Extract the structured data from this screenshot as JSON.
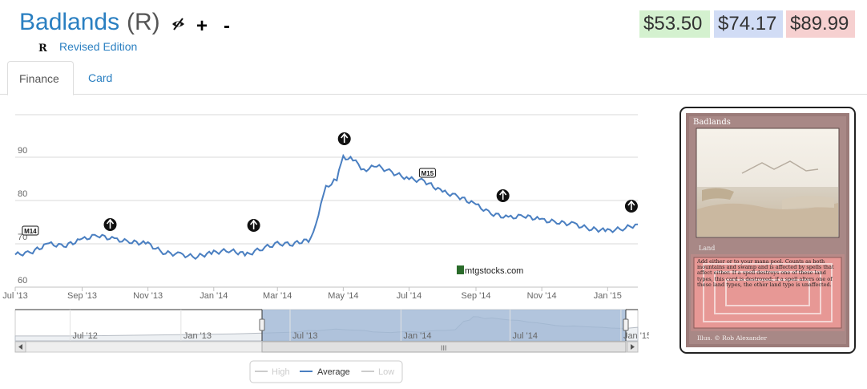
{
  "header": {
    "card_name": "Badlands",
    "rarity": "(R)",
    "icons": [
      "foil-toggle-icon",
      "plus-icon",
      "minus-icon"
    ],
    "plus_label": "+",
    "minus_label": "-",
    "set_symbol": "R",
    "set_name": "Revised Edition"
  },
  "prices": {
    "low": "$53.50",
    "average": "$74.17",
    "high": "$89.99",
    "colors": {
      "low": "#d4f1cf",
      "average": "#d1dcf5",
      "high": "#f6d0d0"
    }
  },
  "tabs": [
    {
      "label": "Finance",
      "active": true
    },
    {
      "label": "Card",
      "active": false
    }
  ],
  "watermark": "mtgstocks.com",
  "navigator": {
    "labels": [
      "Jul '12",
      "Jan '13",
      "Jul '13",
      "Jan '14",
      "Jul '14",
      "Jan '15"
    ],
    "scrollbar_grip": "III"
  },
  "legend": [
    {
      "name": "High",
      "visible": false
    },
    {
      "name": "Average",
      "visible": true
    },
    {
      "name": "Low",
      "visible": false
    }
  ],
  "card_image": {
    "title": "Badlands",
    "type_line": "Land",
    "rules_text": "Add either or to your mana pool. Counts as both mountains and swamp and is affected by spells that affect either. If a spell destroys one of these land types, this card is destroyed; if a spell alters one of these land types, the other land type is unaffected.",
    "artist": "Illus. © Rob Alexander"
  },
  "chart_data": {
    "type": "line",
    "x_axis_type": "date",
    "series": [
      {
        "name": "Average",
        "color": "#4a7fc1",
        "points": [
          [
            "2013-07-01",
            67.5
          ],
          [
            "2013-07-15",
            68.0
          ],
          [
            "2013-08-01",
            70.0
          ],
          [
            "2013-08-15",
            69.5
          ],
          [
            "2013-09-01",
            71.0
          ],
          [
            "2013-09-15",
            72.0
          ],
          [
            "2013-10-01",
            71.0
          ],
          [
            "2013-10-15",
            70.5
          ],
          [
            "2013-11-01",
            70.0
          ],
          [
            "2013-11-15",
            68.0
          ],
          [
            "2013-12-01",
            67.5
          ],
          [
            "2013-12-15",
            67.0
          ],
          [
            "2014-01-01",
            68.0
          ],
          [
            "2014-01-15",
            68.5
          ],
          [
            "2014-02-01",
            67.5
          ],
          [
            "2014-02-15",
            69.0
          ],
          [
            "2014-03-01",
            70.0
          ],
          [
            "2014-03-15",
            70.0
          ],
          [
            "2014-04-01",
            71.0
          ],
          [
            "2014-04-08",
            77.0
          ],
          [
            "2014-04-15",
            83.0
          ],
          [
            "2014-04-25",
            85.0
          ],
          [
            "2014-05-01",
            90.0
          ],
          [
            "2014-05-10",
            89.5
          ],
          [
            "2014-05-20",
            87.0
          ],
          [
            "2014-06-01",
            88.0
          ],
          [
            "2014-06-15",
            86.5
          ],
          [
            "2014-07-01",
            85.0
          ],
          [
            "2014-07-15",
            84.5
          ],
          [
            "2014-08-01",
            82.0
          ],
          [
            "2014-08-15",
            81.0
          ],
          [
            "2014-09-01",
            79.0
          ],
          [
            "2014-09-15",
            77.0
          ],
          [
            "2014-10-01",
            76.0
          ],
          [
            "2014-10-15",
            76.5
          ],
          [
            "2014-11-01",
            75.5
          ],
          [
            "2014-11-15",
            75.0
          ],
          [
            "2014-12-01",
            74.5
          ],
          [
            "2014-12-15",
            73.5
          ],
          [
            "2015-01-01",
            73.0
          ],
          [
            "2015-01-15",
            73.5
          ],
          [
            "2015-01-29",
            74.5
          ]
        ]
      }
    ],
    "x_range": [
      "2013-07-01",
      "2015-01-29"
    ],
    "x_tick_labels": [
      "Jul '13",
      "Sep '13",
      "Nov '13",
      "Jan '14",
      "Mar '14",
      "May '14",
      "Jul '14",
      "Sep '14",
      "Nov '14",
      "Jan '15"
    ],
    "x_tick_dates": [
      "2013-07-01",
      "2013-09-01",
      "2013-11-01",
      "2014-01-01",
      "2014-03-01",
      "2014-05-01",
      "2014-07-01",
      "2014-09-01",
      "2014-11-01",
      "2015-01-01"
    ],
    "ylim": [
      60,
      100
    ],
    "y_ticks": [
      60,
      70,
      80,
      90
    ],
    "grid": true,
    "legend_position": "bottom-center",
    "set_release_markers": [
      {
        "date": "2013-07-15",
        "label": "M14",
        "icon": "m14-set-icon"
      },
      {
        "date": "2013-09-27",
        "label": "",
        "icon": "theros-set-icon"
      },
      {
        "date": "2014-02-07",
        "label": "",
        "icon": "born-of-the-gods-set-icon"
      },
      {
        "date": "2014-05-02",
        "label": "",
        "icon": "journey-into-nyx-set-icon"
      },
      {
        "date": "2014-07-18",
        "label": "M15",
        "icon": "m15-set-icon"
      },
      {
        "date": "2014-09-26",
        "label": "",
        "icon": "khans-set-icon"
      },
      {
        "date": "2015-01-23",
        "label": "",
        "icon": "fate-reforged-set-icon"
      }
    ]
  }
}
